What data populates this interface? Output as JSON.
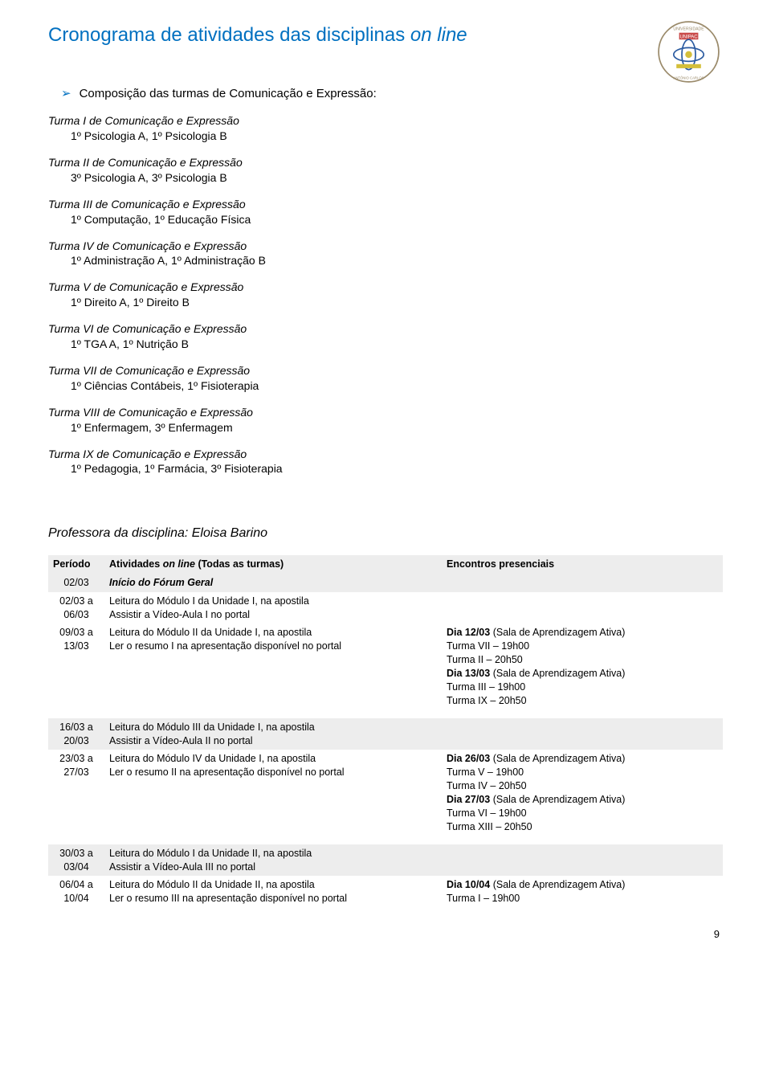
{
  "title_part1": "Cronograma de atividades das disciplinas ",
  "title_part2": "on line",
  "section_heading": "Composição das turmas de Comunicação e Expressão:",
  "groups": [
    {
      "title": "Turma I de Comunicação e Expressão",
      "detail": "1º Psicologia A, 1º Psicologia B"
    },
    {
      "title": "Turma II de Comunicação e Expressão",
      "detail": "3º Psicologia A, 3º Psicologia B"
    },
    {
      "title": "Turma III de Comunicação e Expressão",
      "detail": "1º Computação, 1º Educação Física"
    },
    {
      "title": "Turma IV de Comunicação e Expressão",
      "detail": "1º Administração A, 1º Administração B"
    },
    {
      "title": "Turma V de Comunicação e Expressão",
      "detail": "1º Direito A, 1º Direito B"
    },
    {
      "title": "Turma VI de Comunicação e Expressão",
      "detail": "1º TGA A, 1º Nutrição B"
    },
    {
      "title": "Turma VII de Comunicação e Expressão",
      "detail": "1º Ciências Contábeis, 1º Fisioterapia"
    },
    {
      "title": "Turma VIII de Comunicação e Expressão",
      "detail": "1º Enfermagem, 3º Enfermagem"
    },
    {
      "title": "Turma IX de Comunicação e Expressão",
      "detail": "1º Pedagogia, 1º Farmácia, 3º Fisioterapia"
    }
  ],
  "professor": "Professora da disciplina: Eloisa Barino",
  "table": {
    "headers": {
      "periodo": "Período",
      "atividades": "Atividades on line (Todas as turmas)",
      "encontros": "Encontros presenciais"
    },
    "rows": [
      {
        "shaded": true,
        "periodo": "02/03",
        "atividades": "Início do Fórum Geral",
        "encontros": ""
      },
      {
        "shaded": false,
        "periodo": "02/03 a\n06/03",
        "atividades": "Leitura do Módulo I da Unidade I, na apostila\nAssistir a Vídeo-Aula I no portal",
        "encontros": ""
      },
      {
        "shaded": false,
        "periodo": "09/03 a\n13/03",
        "atividades": "Leitura do Módulo II da Unidade I, na apostila\nLer o resumo I na apresentação disponível no portal",
        "encontros": "Dia 12/03 (Sala de Aprendizagem Ativa)\nTurma VII – 19h00\nTurma II – 20h50\nDia 13/03 (Sala de Aprendizagem Ativa)\nTurma III – 19h00\nTurma IX – 20h50"
      },
      {
        "spacer": true
      },
      {
        "shaded": true,
        "periodo": "16/03 a\n20/03",
        "atividades": "Leitura do Módulo III da Unidade I, na apostila\nAssistir a Vídeo-Aula II no portal",
        "encontros": ""
      },
      {
        "shaded": false,
        "periodo": "23/03 a\n27/03",
        "atividades": "Leitura do Módulo IV da Unidade I, na apostila\nLer o resumo II na apresentação disponível no portal",
        "encontros": "Dia 26/03 (Sala de Aprendizagem Ativa)\nTurma V – 19h00\nTurma IV – 20h50\nDia 27/03 (Sala de Aprendizagem Ativa)\nTurma VI – 19h00\nTurma XIII – 20h50"
      },
      {
        "spacer": true
      },
      {
        "shaded": true,
        "periodo": "30/03 a\n03/04",
        "atividades": "Leitura do Módulo I da Unidade II, na apostila\nAssistir a Vídeo-Aula III no portal",
        "encontros": ""
      },
      {
        "shaded": false,
        "periodo": "06/04 a\n10/04",
        "atividades": "Leitura do Módulo II da Unidade II, na apostila\nLer o resumo III na apresentação disponível no portal",
        "encontros": "Dia 10/04 (Sala de Aprendizagem Ativa)\nTurma I – 19h00"
      }
    ]
  },
  "page_number": "9",
  "colors": {
    "title": "#0070c0",
    "bullet": "#0070c0",
    "shaded_row": "#ededed",
    "text": "#000000",
    "bg": "#ffffff"
  }
}
